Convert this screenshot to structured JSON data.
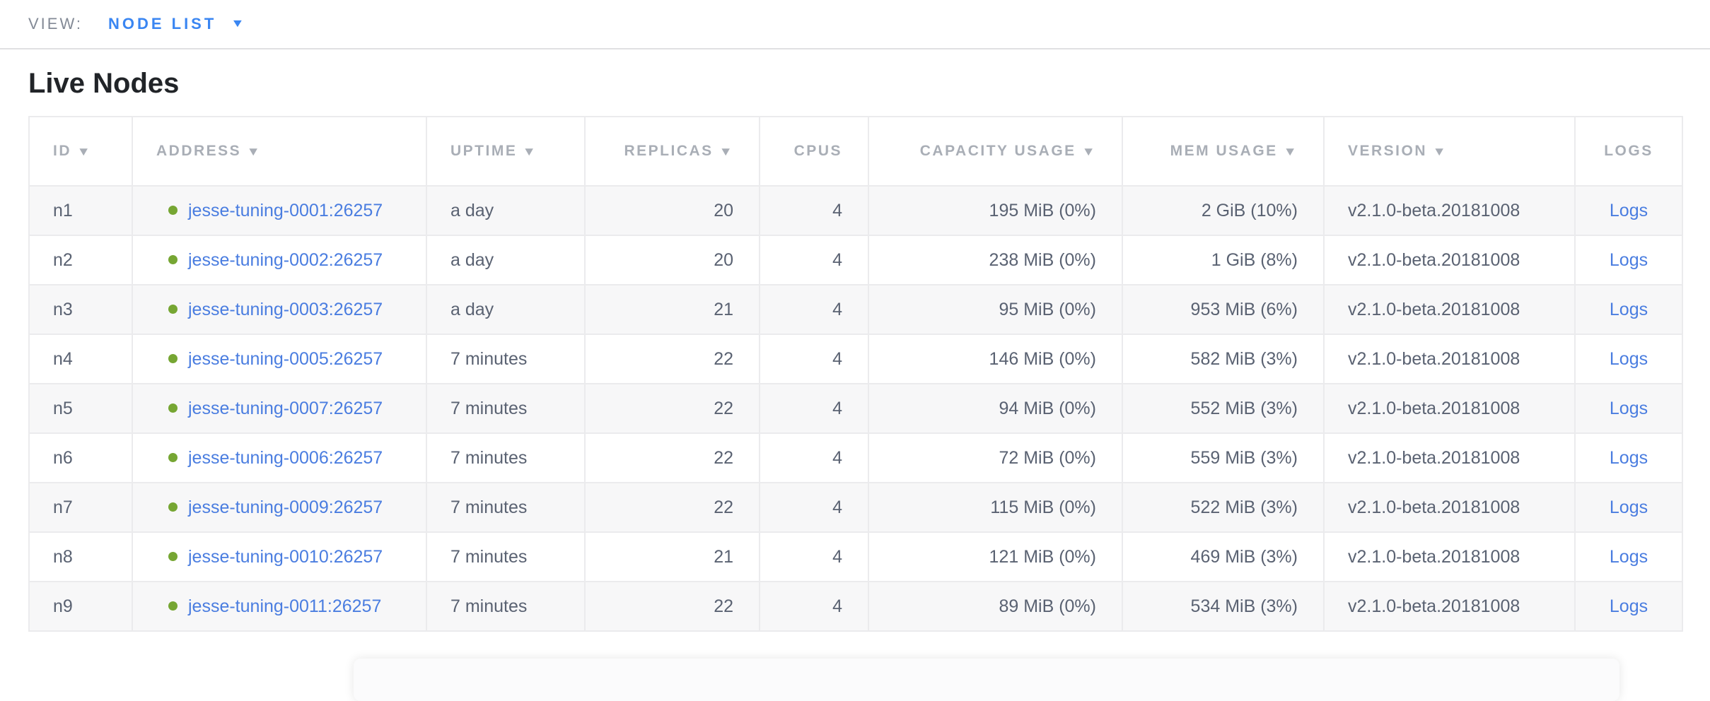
{
  "topbar": {
    "view_label": "VIEW:",
    "view_value": "NODE LIST"
  },
  "page": {
    "title": "Live Nodes"
  },
  "icons": {
    "dropdown_icon": "▼",
    "sort_desc_icon": "▼"
  },
  "colors": {
    "accent_blue": "#3a86f2",
    "link_blue": "#4a7de0",
    "live_green": "#76a633",
    "header_gray": "#a9aeb6",
    "body_text": "#5a6272",
    "stripe": "#f7f7f8"
  },
  "table": {
    "columns": [
      {
        "key": "id",
        "label": "ID",
        "sortable": true,
        "align": "left"
      },
      {
        "key": "address",
        "label": "ADDRESS",
        "sortable": true,
        "align": "left"
      },
      {
        "key": "uptime",
        "label": "UPTIME",
        "sortable": true,
        "align": "left"
      },
      {
        "key": "replicas",
        "label": "REPLICAS",
        "sortable": true,
        "align": "right"
      },
      {
        "key": "cpus",
        "label": "CPUS",
        "sortable": false,
        "align": "right"
      },
      {
        "key": "capacity",
        "label": "CAPACITY USAGE",
        "sortable": true,
        "align": "right"
      },
      {
        "key": "mem",
        "label": "MEM USAGE",
        "sortable": true,
        "align": "right"
      },
      {
        "key": "version",
        "label": "VERSION",
        "sortable": true,
        "align": "left"
      },
      {
        "key": "logs",
        "label": "LOGS",
        "sortable": false,
        "align": "center"
      }
    ],
    "rows": [
      {
        "id": "n1",
        "address": "jesse-tuning-0001:26257",
        "uptime": "a day",
        "replicas": "20",
        "cpus": "4",
        "capacity": "195 MiB (0%)",
        "mem": "2 GiB (10%)",
        "version": "v2.1.0-beta.20181008",
        "logs": "Logs"
      },
      {
        "id": "n2",
        "address": "jesse-tuning-0002:26257",
        "uptime": "a day",
        "replicas": "20",
        "cpus": "4",
        "capacity": "238 MiB (0%)",
        "mem": "1 GiB (8%)",
        "version": "v2.1.0-beta.20181008",
        "logs": "Logs"
      },
      {
        "id": "n3",
        "address": "jesse-tuning-0003:26257",
        "uptime": "a day",
        "replicas": "21",
        "cpus": "4",
        "capacity": "95 MiB (0%)",
        "mem": "953 MiB (6%)",
        "version": "v2.1.0-beta.20181008",
        "logs": "Logs"
      },
      {
        "id": "n4",
        "address": "jesse-tuning-0005:26257",
        "uptime": "7 minutes",
        "replicas": "22",
        "cpus": "4",
        "capacity": "146 MiB (0%)",
        "mem": "582 MiB (3%)",
        "version": "v2.1.0-beta.20181008",
        "logs": "Logs"
      },
      {
        "id": "n5",
        "address": "jesse-tuning-0007:26257",
        "uptime": "7 minutes",
        "replicas": "22",
        "cpus": "4",
        "capacity": "94 MiB (0%)",
        "mem": "552 MiB (3%)",
        "version": "v2.1.0-beta.20181008",
        "logs": "Logs"
      },
      {
        "id": "n6",
        "address": "jesse-tuning-0006:26257",
        "uptime": "7 minutes",
        "replicas": "22",
        "cpus": "4",
        "capacity": "72 MiB (0%)",
        "mem": "559 MiB (3%)",
        "version": "v2.1.0-beta.20181008",
        "logs": "Logs"
      },
      {
        "id": "n7",
        "address": "jesse-tuning-0009:26257",
        "uptime": "7 minutes",
        "replicas": "22",
        "cpus": "4",
        "capacity": "115 MiB (0%)",
        "mem": "522 MiB (3%)",
        "version": "v2.1.0-beta.20181008",
        "logs": "Logs"
      },
      {
        "id": "n8",
        "address": "jesse-tuning-0010:26257",
        "uptime": "7 minutes",
        "replicas": "21",
        "cpus": "4",
        "capacity": "121 MiB (0%)",
        "mem": "469 MiB (3%)",
        "version": "v2.1.0-beta.20181008",
        "logs": "Logs"
      },
      {
        "id": "n9",
        "address": "jesse-tuning-0011:26257",
        "uptime": "7 minutes",
        "replicas": "22",
        "cpus": "4",
        "capacity": "89 MiB (0%)",
        "mem": "534 MiB (3%)",
        "version": "v2.1.0-beta.20181008",
        "logs": "Logs"
      }
    ]
  }
}
